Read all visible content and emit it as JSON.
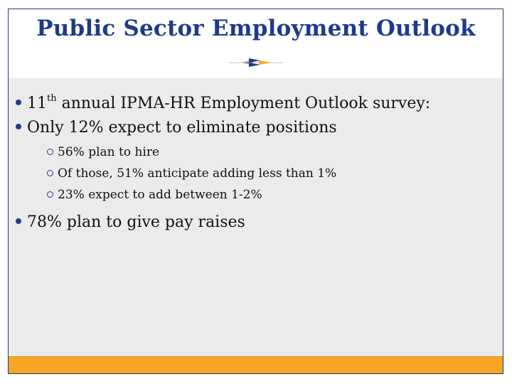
{
  "slide": {
    "title": "Public Sector Employment Outlook",
    "accent_colors": {
      "title": "#1f3a8a",
      "footer": "#f6a623",
      "content_bg": "#ebebeb"
    },
    "bullets": [
      {
        "prefix": "11",
        "sup": "th",
        "text": " annual IPMA-HR Employment Outlook survey:"
      },
      {
        "text": "Only 12% expect to eliminate positions"
      }
    ],
    "subbullets": [
      {
        "text": "56% plan to hire"
      },
      {
        "text": "Of those, 51% anticipate adding less than 1%"
      },
      {
        "text": "23% expect to add between 1-2%"
      }
    ],
    "last_bullet": {
      "text": "78% plan to give pay raises"
    },
    "ornament_icon": "arrow-divider-icon"
  }
}
